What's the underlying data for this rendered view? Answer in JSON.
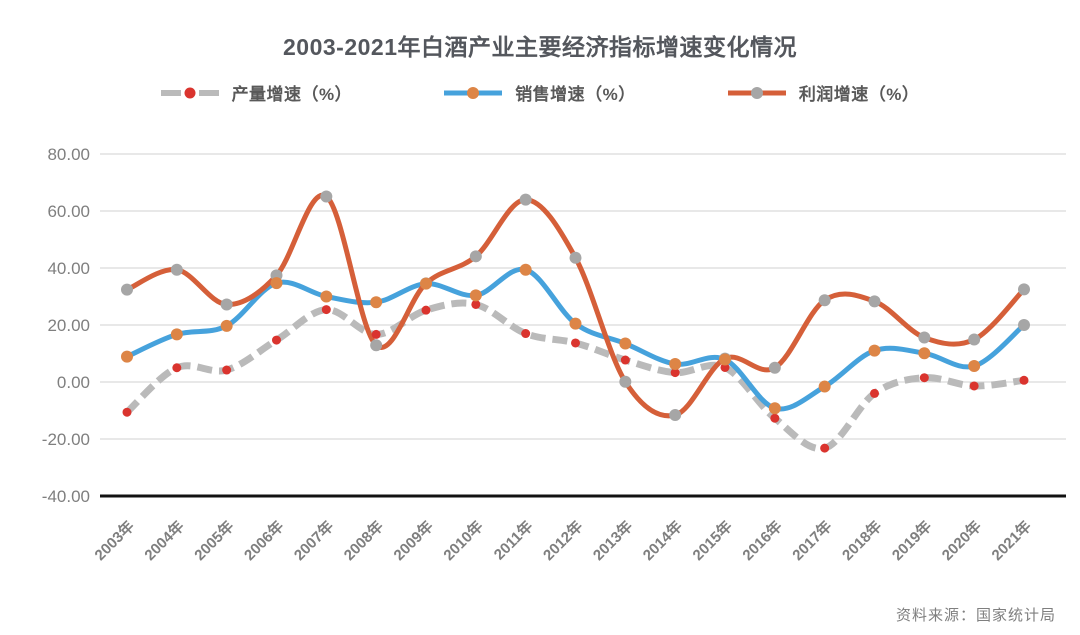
{
  "title": "2003-2021年白酒产业主要经济指标增速变化情况",
  "source_note": "资料来源：国家统计局",
  "chart_data": {
    "type": "line",
    "title": "2003-2021年白酒产业主要经济指标增速变化情况",
    "xlabel": "",
    "ylabel": "",
    "ylim": [
      -40,
      80
    ],
    "grid": true,
    "legend_position": "top",
    "categories": [
      "2003年",
      "2004年",
      "2005年",
      "2006年",
      "2007年",
      "2008年",
      "2009年",
      "2010年",
      "2011年",
      "2012年",
      "2013年",
      "2014年",
      "2015年",
      "2016年",
      "2017年",
      "2018年",
      "2019年",
      "2020年",
      "2021年"
    ],
    "y_ticks": [
      80,
      60,
      40,
      20,
      0,
      -20,
      -40
    ],
    "y_tick_labels": [
      "80.00",
      "60.00",
      "40.00",
      "20.00",
      "0.00",
      "-20.00",
      "-40.00"
    ],
    "series": [
      {
        "key": "production",
        "name": "产量增速（%）",
        "line_color": "#bababa",
        "marker_color": "#da342e",
        "line_width": 7,
        "dashed": true,
        "marker_radius": 4.5,
        "values": [
          -10.6,
          5.0,
          4.2,
          14.7,
          25.4,
          16.7,
          25.2,
          27.2,
          17.0,
          13.7,
          7.7,
          3.3,
          5.1,
          -12.7,
          -23.2,
          -4.0,
          1.5,
          -1.4,
          0.6
        ]
      },
      {
        "key": "sales",
        "name": "销售增速（%）",
        "line_color": "#46a2dc",
        "marker_color": "#dd8546",
        "end_marker_color": "#a6a6a6",
        "line_width": 5,
        "dashed": false,
        "marker_radius": 6,
        "values": [
          8.9,
          16.7,
          19.7,
          34.7,
          30.0,
          28.0,
          34.5,
          30.4,
          39.4,
          20.5,
          13.5,
          6.3,
          7.9,
          -9.2,
          -1.6,
          11.0,
          10.1,
          5.6,
          20.0
        ]
      },
      {
        "key": "profit",
        "name": "利润增速（%）",
        "line_color": "#d55f39",
        "marker_color": "#a6a6a6",
        "line_width": 5,
        "dashed": false,
        "marker_radius": 6,
        "values": [
          32.4,
          39.4,
          27.2,
          37.4,
          65.1,
          12.9,
          34.6,
          44.1,
          64.0,
          43.6,
          0.1,
          -11.6,
          8.2,
          5.0,
          28.7,
          28.3,
          15.6,
          14.9,
          32.5
        ]
      }
    ],
    "axis_colors": {
      "gridline": "#d9d9d9",
      "axis_line": "#111111",
      "tick_label": "#7f7f7f"
    }
  }
}
